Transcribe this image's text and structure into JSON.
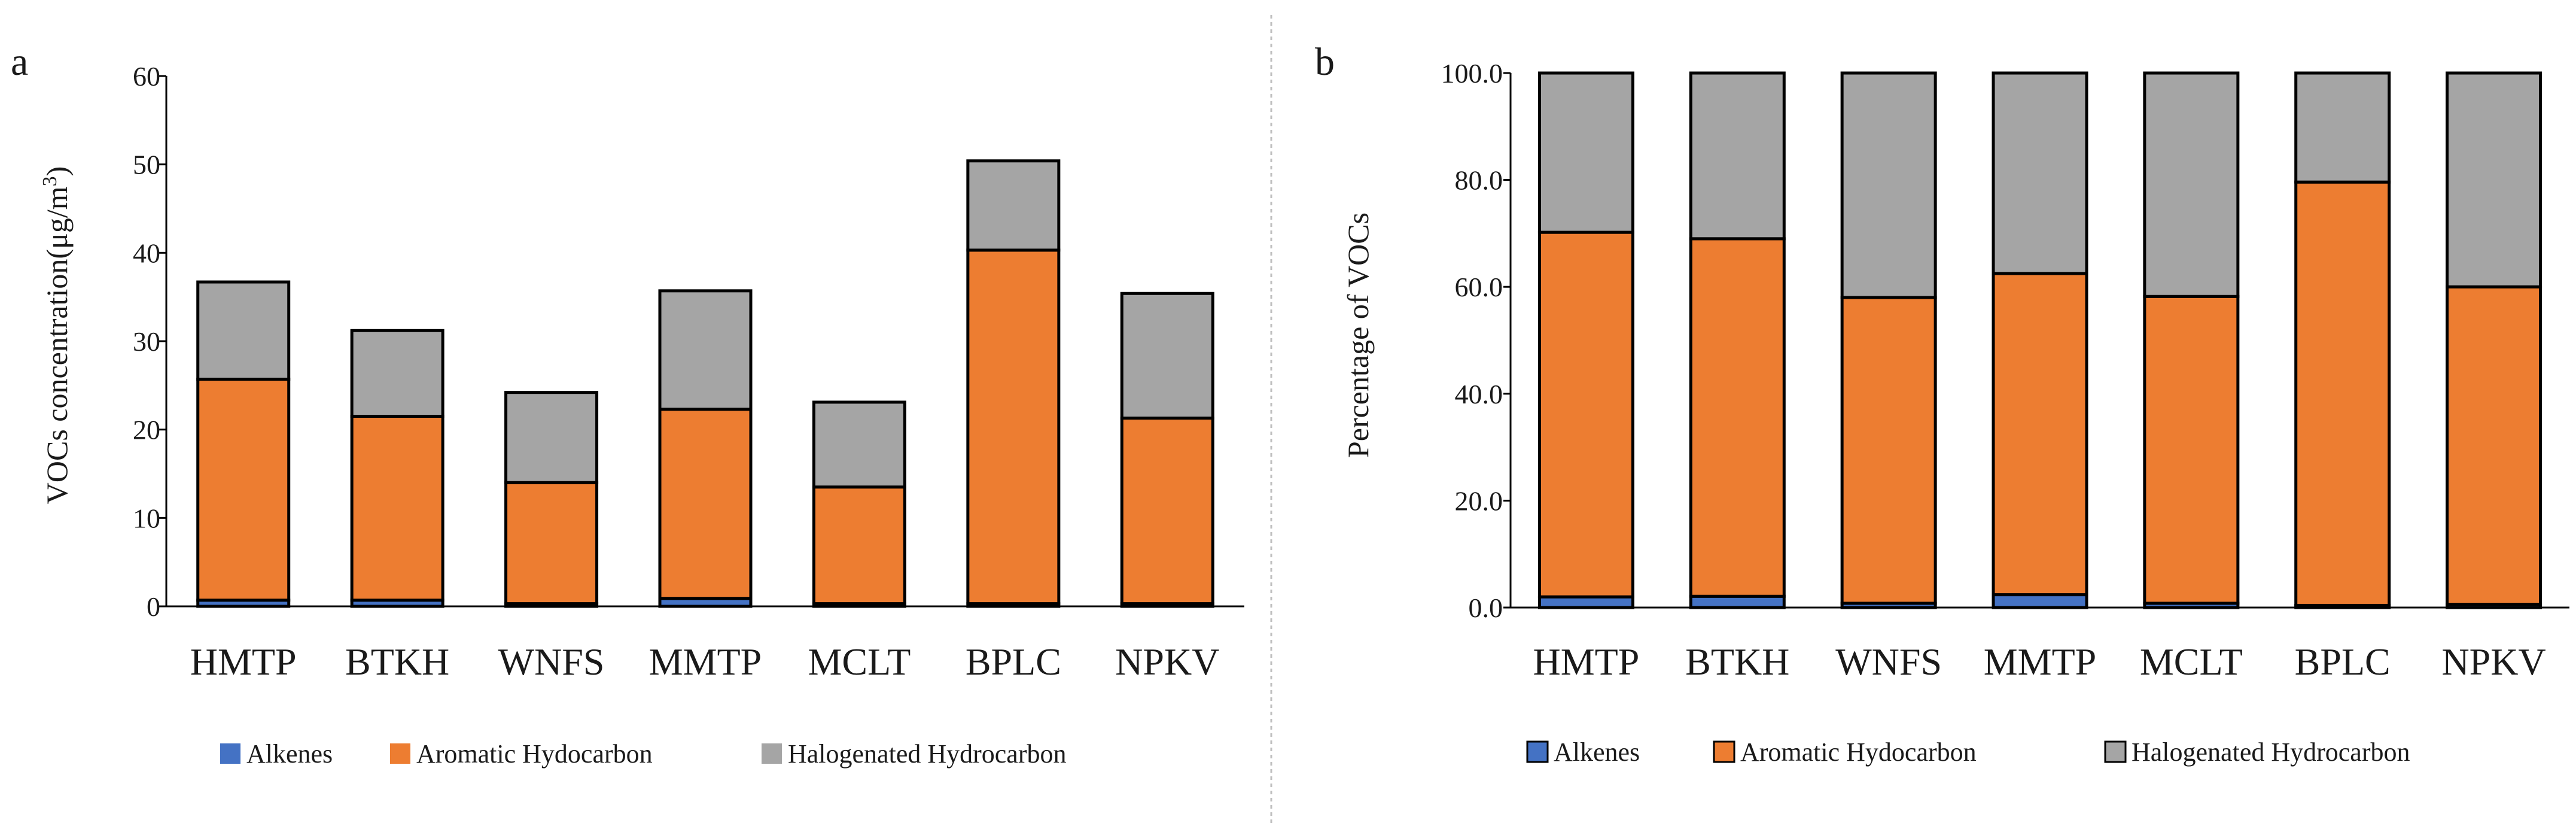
{
  "colors": {
    "alkenes": "#4472c4",
    "aromatic": "#ed7d31",
    "halogenated": "#a5a5a5",
    "axis": "#000000",
    "divider": "#bfbfbf"
  },
  "chart_data": [
    {
      "panel_label": "a",
      "type": "bar",
      "stacked": true,
      "categories": [
        "HMTP",
        "BTKH",
        "WNFS",
        "MMTP",
        "MCLT",
        "BPLC",
        "NPKV"
      ],
      "series": [
        {
          "name": "Alkenes",
          "values": [
            0.7,
            0.7,
            0.3,
            0.9,
            0.3,
            0.3,
            0.3
          ]
        },
        {
          "name": "Aromatic Hydocarbon",
          "values": [
            25.0,
            20.8,
            13.7,
            21.4,
            13.2,
            40.0,
            21.0
          ]
        },
        {
          "name": "Halogenated Hydrocarbon",
          "values": [
            11.0,
            9.7,
            10.2,
            13.4,
            9.6,
            10.1,
            14.1
          ]
        }
      ],
      "ylabel_prefix": "VOCs concentration(μg/m",
      "ylabel_sup": "3",
      "ylabel_suffix": ")",
      "ylim": [
        0,
        60
      ],
      "yticks": [
        "0",
        "10",
        "20",
        "30",
        "40",
        "50",
        "60"
      ],
      "grid": false,
      "legend_position": "bottom"
    },
    {
      "panel_label": "b",
      "type": "bar",
      "stacked": true,
      "categories": [
        "HMTP",
        "BTKH",
        "WNFS",
        "MMTP",
        "MCLT",
        "BPLC",
        "NPKV"
      ],
      "series": [
        {
          "name": "Alkenes",
          "values": [
            2.0,
            2.1,
            0.8,
            2.4,
            0.8,
            0.4,
            0.6
          ]
        },
        {
          "name": "Aromatic Hydocarbon",
          "values": [
            68.2,
            66.9,
            57.2,
            60.1,
            57.4,
            79.2,
            59.4
          ]
        },
        {
          "name": "Halogenated Hydrocarbon",
          "values": [
            29.8,
            31.0,
            42.0,
            37.5,
            41.8,
            20.4,
            40.0
          ]
        }
      ],
      "ylabel": "Percentage of VOCs",
      "ylim": [
        0,
        100
      ],
      "yticks": [
        "0.0",
        "20.0",
        "40.0",
        "60.0",
        "80.0",
        "100.0"
      ],
      "grid": false,
      "legend_position": "bottom"
    }
  ]
}
